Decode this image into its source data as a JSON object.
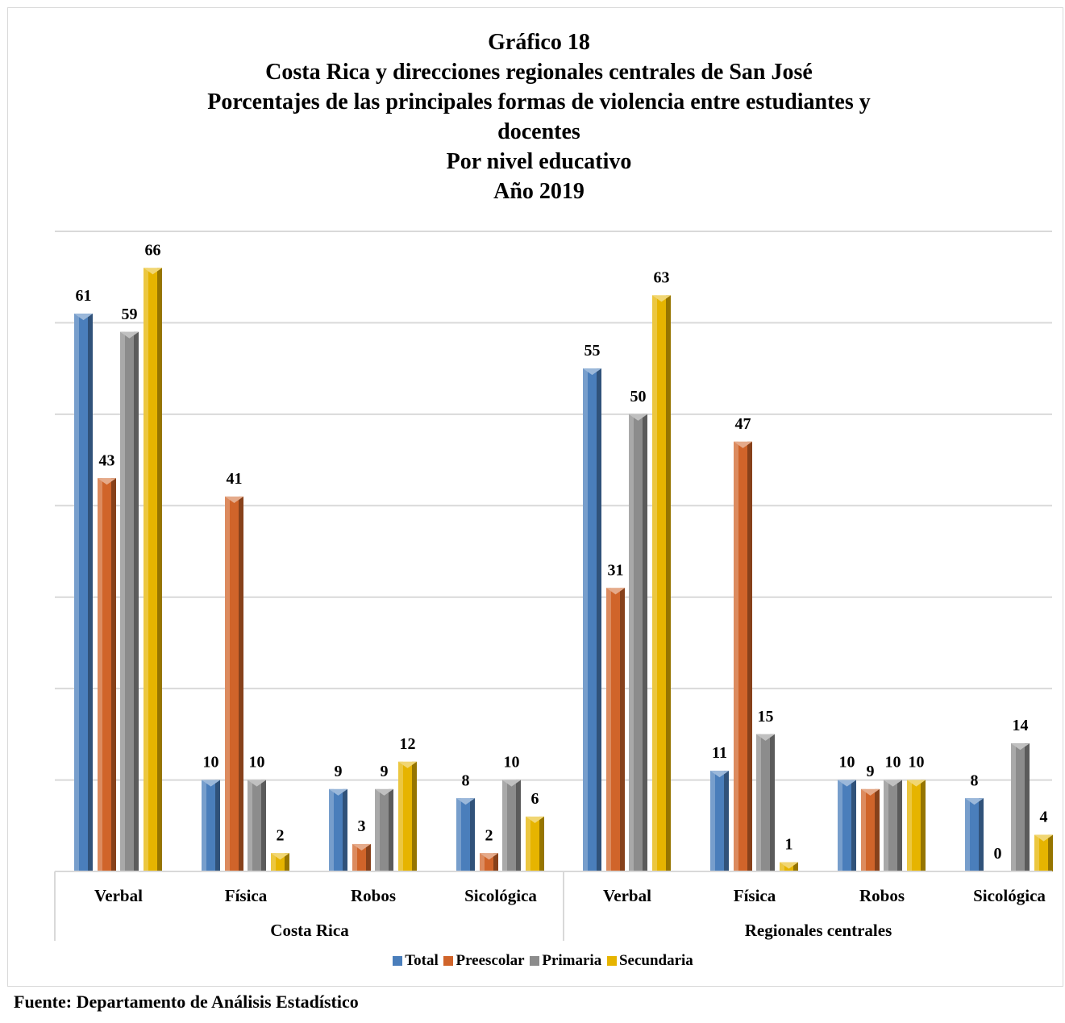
{
  "title_lines": [
    "Gráfico 18",
    "Costa Rica y direcciones regionales centrales de San José",
    "Porcentajes de las principales formas de violencia entre estudiantes y",
    "docentes",
    "Por nivel educativo",
    "Año 2019"
  ],
  "source": "Fuente: Departamento de Análisis Estadístico",
  "colors": {
    "Total": "#4a7ebb",
    "Preescolar": "#d0642a",
    "Primaria": "#8c8c8c",
    "Secundaria": "#e6b400"
  },
  "chart_data": {
    "type": "bar",
    "style": "3d-beveled clustered columns",
    "groups": [
      "Costa Rica",
      "Regionales centrales"
    ],
    "categories": [
      "Verbal",
      "Física",
      "Robos",
      "Sicológica"
    ],
    "series": [
      {
        "name": "Total",
        "values": [
          [
            61,
            10,
            9,
            8
          ],
          [
            55,
            11,
            10,
            8
          ]
        ]
      },
      {
        "name": "Preescolar",
        "values": [
          [
            43,
            41,
            3,
            2
          ],
          [
            31,
            47,
            9,
            0
          ]
        ]
      },
      {
        "name": "Primaria",
        "values": [
          [
            59,
            10,
            9,
            10
          ],
          [
            50,
            15,
            10,
            14
          ]
        ]
      },
      {
        "name": "Secundaria",
        "values": [
          [
            66,
            2,
            12,
            6
          ],
          [
            63,
            1,
            10,
            4
          ]
        ]
      }
    ],
    "ylim": [
      0,
      70
    ],
    "grid": true,
    "y_axis_labels": false,
    "data_labels": true,
    "legend_position": "bottom"
  }
}
